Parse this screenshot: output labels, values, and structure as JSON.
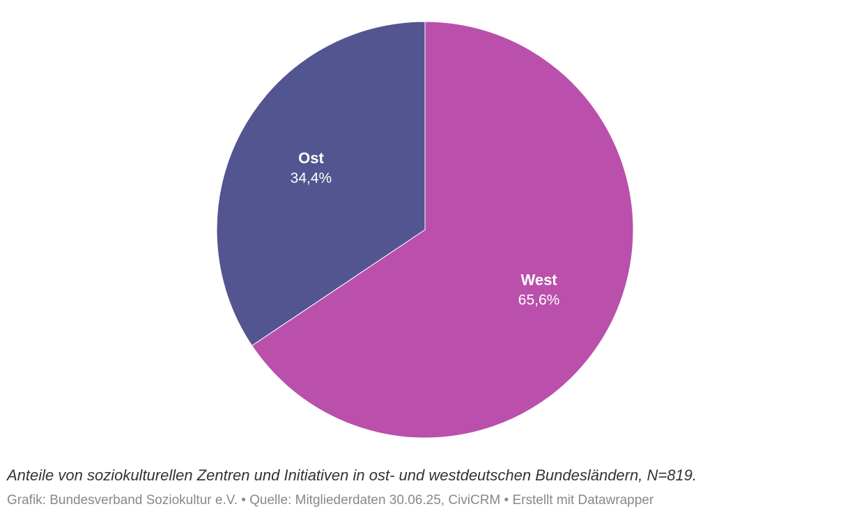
{
  "chart_data": {
    "type": "pie",
    "categories": [
      "Ost",
      "West"
    ],
    "values": [
      34.4,
      65.6
    ],
    "value_labels": [
      "34,4%",
      "65,6%"
    ],
    "colors": [
      "#535591",
      "#ba50ab"
    ],
    "start": "12 o'clock",
    "direction": "counter-clockwise from top for Ost, remainder West"
  },
  "caption": "Anteile von soziokulturellen Zentren und Initiativen in ost- und westdeutschen Bundesländern, N=819.",
  "footer": "Grafik: Bundesverband Soziokultur e.V. • Quelle: Mitgliederdaten 30.06.25, CiviCRM • Erstellt mit Datawrapper"
}
